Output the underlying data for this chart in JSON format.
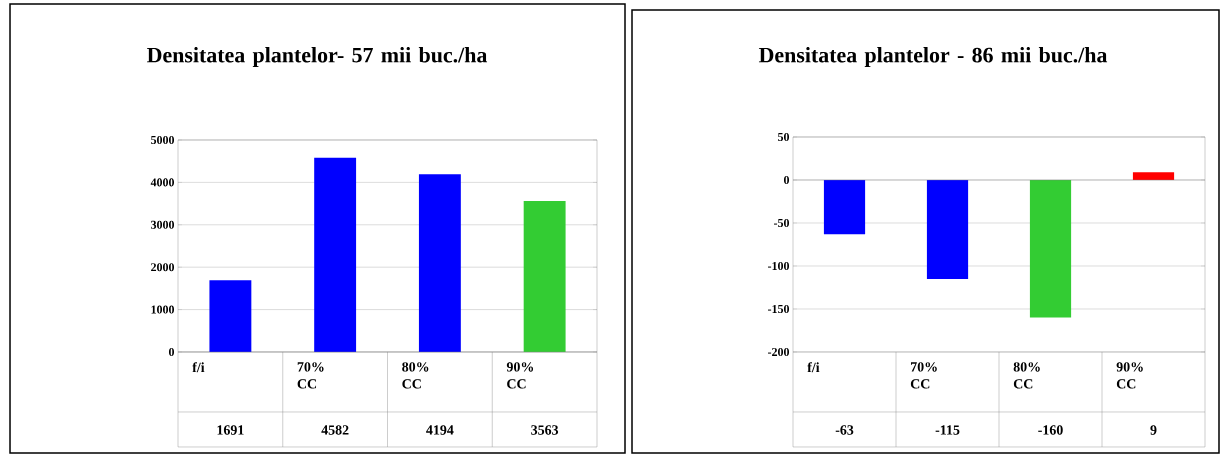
{
  "chart_data": [
    {
      "type": "bar",
      "title": "Densitatea plantelor- 57 mii buc./ha",
      "categories": [
        "f/i",
        "70% CC",
        "80% CC",
        "90% CC"
      ],
      "values": [
        1691,
        4582,
        4194,
        3563
      ],
      "colors": [
        "#0000ff",
        "#0000ff",
        "#0000ff",
        "#33cc33"
      ],
      "ylim": [
        0,
        5000
      ],
      "yticks": [
        0,
        1000,
        2000,
        3000,
        4000,
        5000
      ],
      "grid": "y",
      "data_labels": true
    },
    {
      "type": "bar",
      "title": "Densitatea plantelor - 86 mii buc./ha",
      "categories": [
        "f/i",
        "70% CC",
        "80% CC",
        "90% CC"
      ],
      "values": [
        -63,
        -115,
        -160,
        9
      ],
      "colors": [
        "#0000ff",
        "#0000ff",
        "#33cc33",
        "#ff0000"
      ],
      "ylim": [
        -200,
        50
      ],
      "yticks": [
        -200,
        -150,
        -100,
        -50,
        0,
        50
      ],
      "grid": "y",
      "data_labels": true
    }
  ]
}
